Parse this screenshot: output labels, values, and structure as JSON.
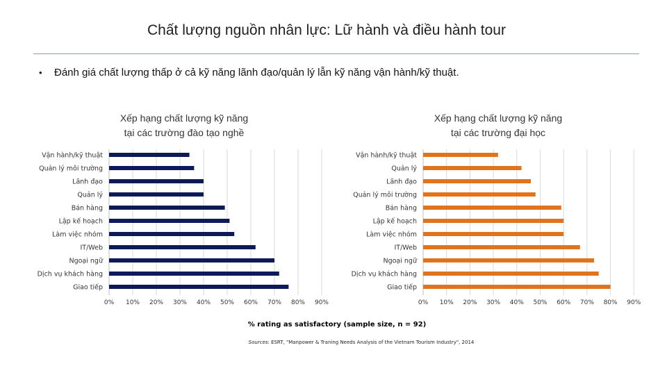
{
  "slide": {
    "title": "Chất lượng nguồn nhân lực: Lữ hành và điều hành tour",
    "bullet_symbol": "•",
    "bullet": "Đánh giá chất lượng thấp ở cả kỹ năng lãnh đạo/quản lý lẫn kỹ năng vận hành/kỹ thuật.",
    "xlabel": "% rating as satisfactory (sample size, n = 92)",
    "source_label": "Sources:",
    "source_text": "ESRT, \"Manpower & Traning Needs Analysis of the Vietnam Tourism Industry\", 2014"
  },
  "chart_data": [
    {
      "type": "bar",
      "orientation": "horizontal",
      "title_line1": "Xếp hạng chất lượng kỹ năng",
      "title_line2": "tại các trường đào tạo nghề",
      "color": "#0e1a57",
      "categories": [
        "Vận hành/kỹ thuật",
        "Quản lý môi trường",
        "Lãnh đạo",
        "Quản lý",
        "Bán hàng",
        "Lập kế hoạch",
        "Làm việc nhóm",
        "IT/Web",
        "Ngoại ngữ",
        "Dịch vụ khách hàng",
        "Giao tiếp"
      ],
      "values": [
        34,
        36,
        40,
        40,
        49,
        51,
        53,
        62,
        70,
        72,
        76
      ],
      "xlim": [
        0,
        90
      ],
      "xticks": [
        "0%",
        "10%",
        "20%",
        "30%",
        "40%",
        "50%",
        "60%",
        "70%",
        "80%",
        "90%"
      ]
    },
    {
      "type": "bar",
      "orientation": "horizontal",
      "title_line1": "Xếp hạng chất lượng kỹ năng",
      "title_line2": "tại các trường đại học",
      "color": "#e0731e",
      "categories": [
        "Vận hành/kỹ thuật",
        "Quản lý",
        "Lãnh đạo",
        "Quản lý môi trường",
        "Bán hàng",
        "Lập kế hoạch",
        "Làm việc nhóm",
        "IT/Web",
        "Ngoại ngữ",
        "Dịch vụ khách hàng",
        "Giao tiếp"
      ],
      "values": [
        32,
        42,
        46,
        48,
        59,
        60,
        60,
        67,
        73,
        75,
        80
      ],
      "xlim": [
        0,
        90
      ],
      "xticks": [
        "0%",
        "10%",
        "20%",
        "30%",
        "40%",
        "50%",
        "60%",
        "70%",
        "80%",
        "90%"
      ]
    }
  ]
}
